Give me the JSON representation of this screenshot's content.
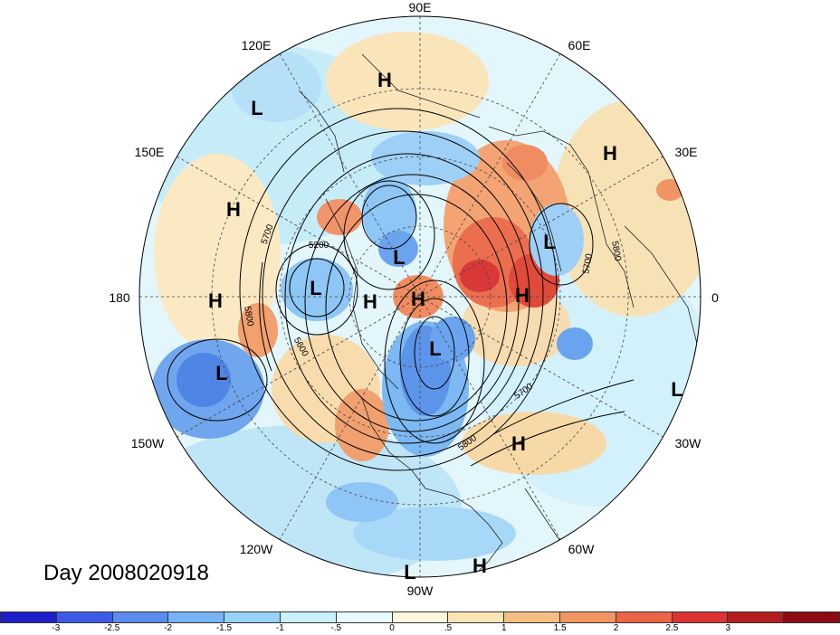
{
  "map": {
    "projection": "north polar stereographic",
    "field": "anomaly (shaded) with height contours",
    "longitude_labels": {
      "lon_90E": "90E",
      "lon_60E": "60E",
      "lon_30E": "30E",
      "lon_0": "0",
      "lon_30W": "30W",
      "lon_60W": "60W",
      "lon_90W": "90W",
      "lon_120W": "120W",
      "lon_150W": "150W",
      "lon_180": "180",
      "lon_150E": "150E",
      "lon_120E": "120E"
    },
    "contour_labels": [
      "5200",
      "5700",
      "5800",
      "5600",
      "5800",
      "5700",
      "5700",
      "5800"
    ],
    "pressure_centers": [
      {
        "label": "H",
        "type": "high"
      },
      {
        "label": "L",
        "type": "low"
      },
      {
        "label": "H",
        "type": "high"
      },
      {
        "label": "H",
        "type": "high"
      },
      {
        "label": "H",
        "type": "high"
      },
      {
        "label": "L",
        "type": "low"
      },
      {
        "label": "L",
        "type": "low"
      },
      {
        "label": "H",
        "type": "high"
      },
      {
        "label": "H",
        "type": "high"
      },
      {
        "label": "L",
        "type": "low"
      },
      {
        "label": "H",
        "type": "high"
      },
      {
        "label": "L",
        "type": "low"
      },
      {
        "label": "L",
        "type": "low"
      },
      {
        "label": "L",
        "type": "low"
      },
      {
        "label": "H",
        "type": "high"
      },
      {
        "label": "H",
        "type": "high"
      },
      {
        "label": "L",
        "type": "low"
      },
      {
        "label": "H",
        "type": "high"
      }
    ],
    "colors": {
      "land_outline": "#000000",
      "grid": "#444444",
      "contour": "#000000"
    }
  },
  "day_label": "Day 2008020918",
  "colorbar": {
    "colors": [
      "#1e1ec8",
      "#3c5ae6",
      "#5a8cf0",
      "#78b4f5",
      "#96d2fa",
      "#c8f0ff",
      "#e6faff",
      "#fff8dc",
      "#fae6b4",
      "#f5be82",
      "#f09664",
      "#eb6446",
      "#dc3232",
      "#b41e1e",
      "#8c0a14"
    ],
    "ticks": [
      "-3",
      "-2.5",
      "-2",
      "-1.5",
      "-1",
      "-.5",
      "0",
      ".5",
      "1",
      "1.5",
      "2",
      "2.5",
      "3"
    ]
  }
}
